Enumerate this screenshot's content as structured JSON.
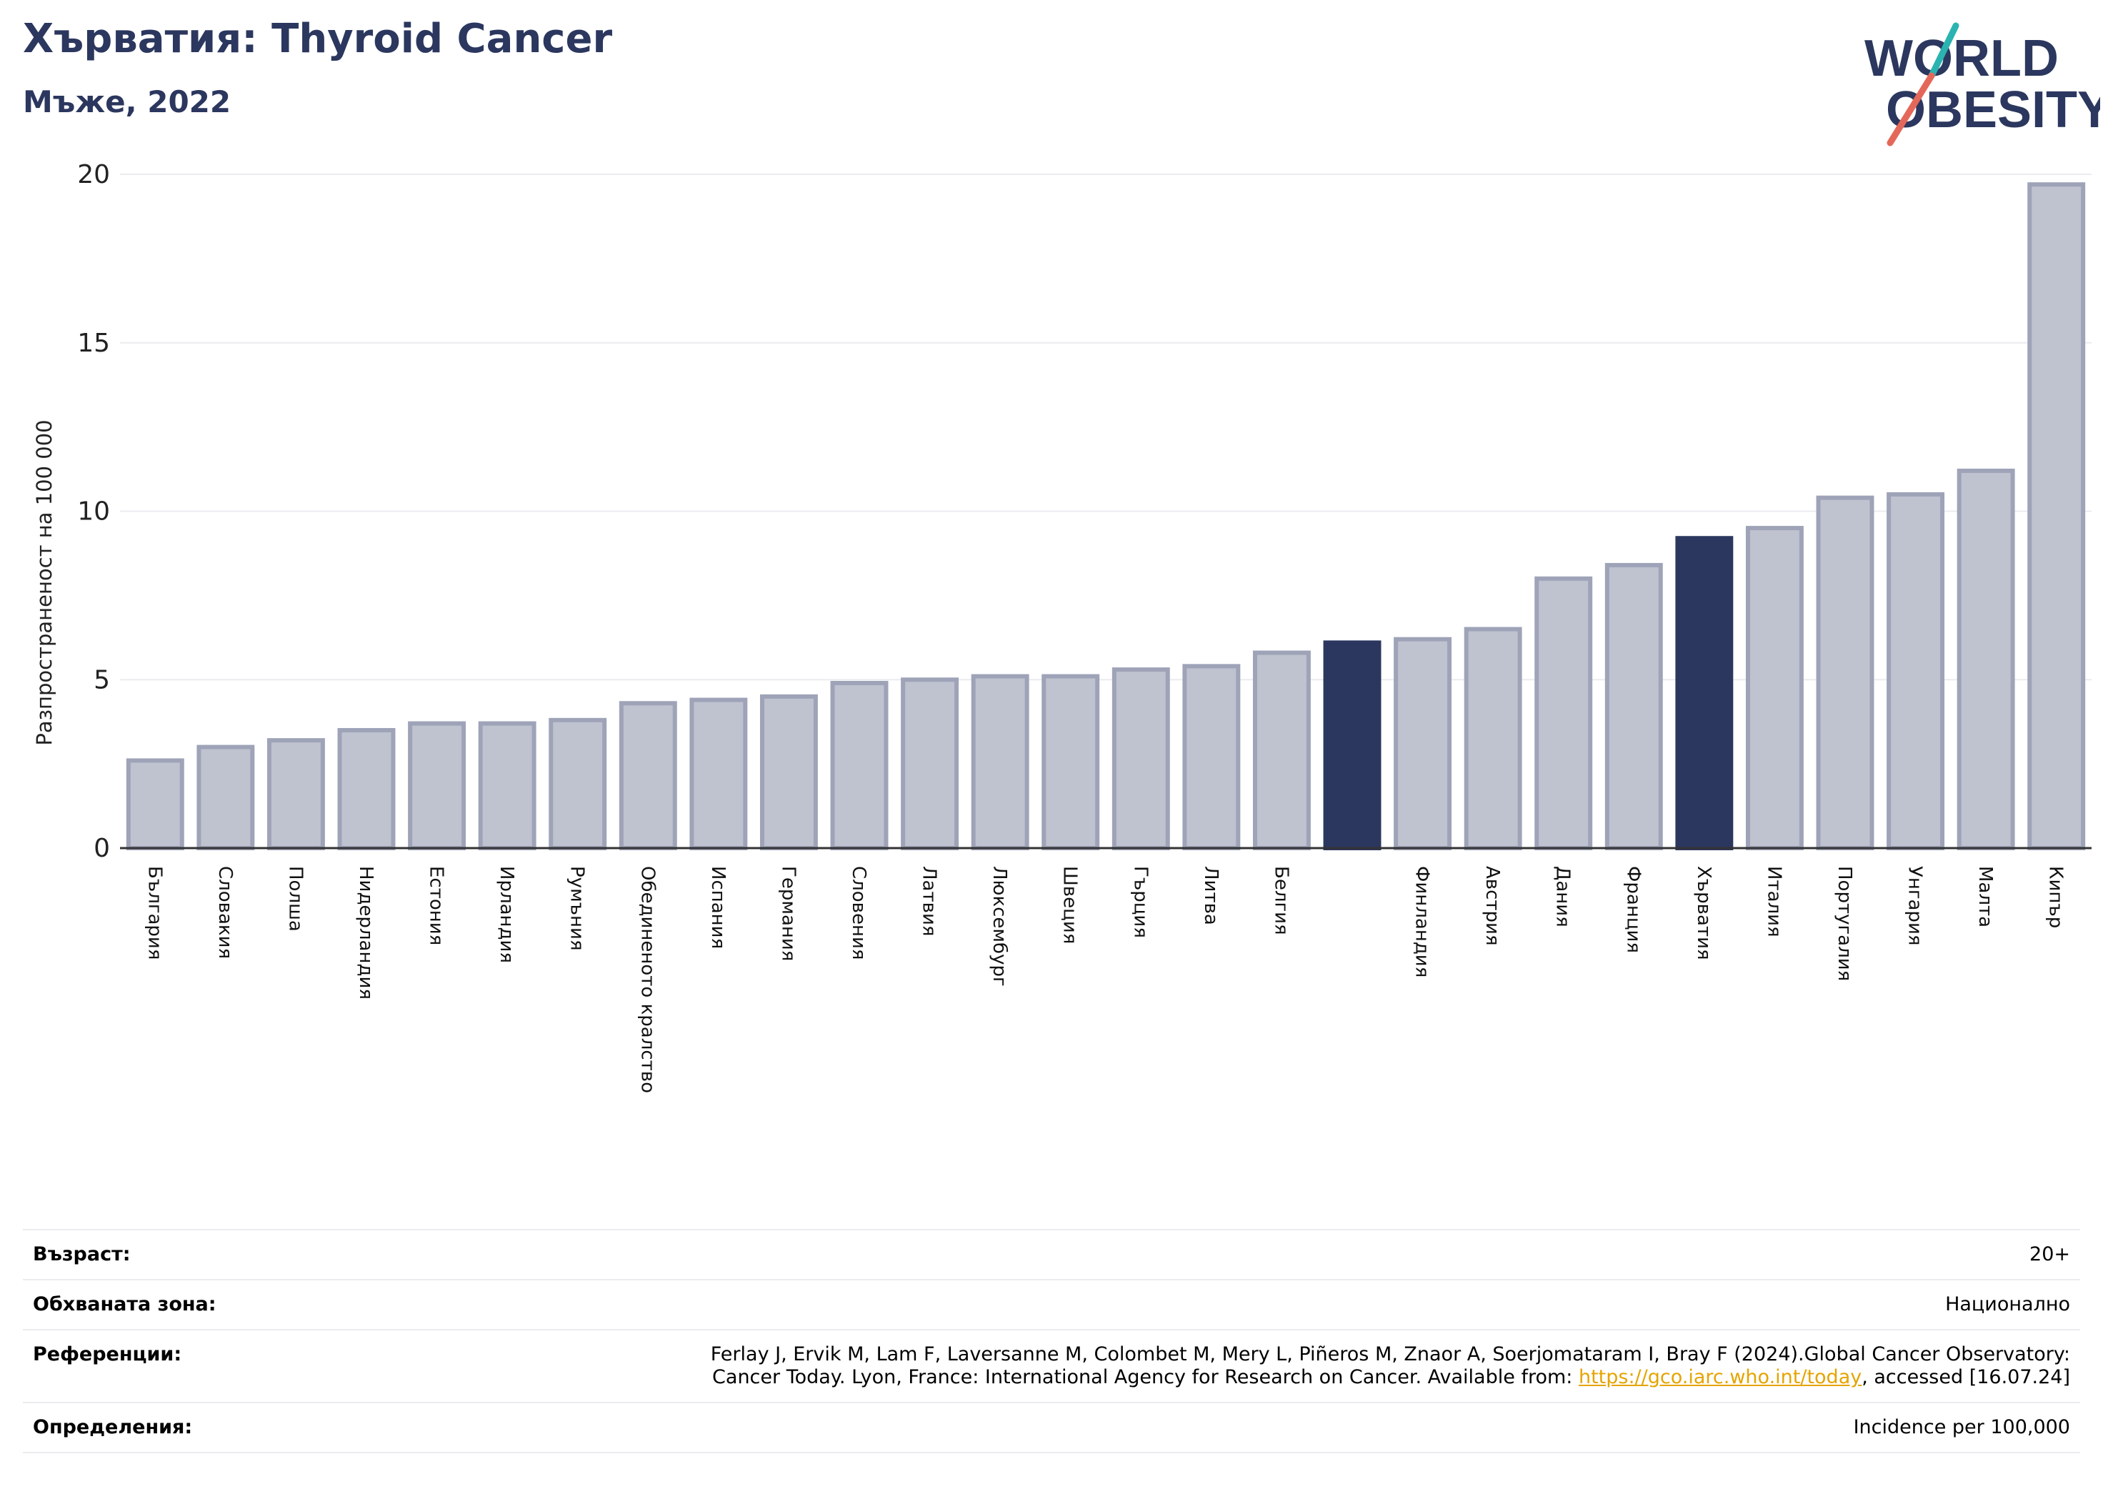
{
  "header": {
    "title": "Хърватия: Thyroid Cancer",
    "subtitle": "Мъже, 2022"
  },
  "logo": {
    "line1": "WORLD",
    "line2": "OBESITY",
    "accent_teal": "#2ab3b1",
    "accent_coral": "#e4685a",
    "text_color": "#2b375e"
  },
  "colors": {
    "bar_default": "#bfc2cf",
    "bar_default_edge": "#9ea3b8",
    "bar_highlight": "#2b375e",
    "grid": "#ebebf0",
    "axis": "#333333"
  },
  "chart_data": {
    "type": "bar",
    "title": "Хърватия: Thyroid Cancer",
    "subtitle": "Мъже, 2022",
    "xlabel": "",
    "ylabel": "Разпространеност  на 100 000",
    "ylim": [
      0,
      20
    ],
    "yticks": [
      0,
      5,
      10,
      15,
      20
    ],
    "grid": true,
    "categories": [
      "България",
      "Словакия",
      "Полша",
      "Нидерландия",
      "Естония",
      "Ирландия",
      "Румъния",
      "Обединеното кралство",
      "Испания",
      "Германия",
      "Словения",
      "Латвия",
      "Люксембург",
      "Швеция",
      "Гърция",
      "Литва",
      "Белгия",
      "",
      "Финландия",
      "Австрия",
      "Дания",
      "Франция",
      "Хърватия",
      "Италия",
      "Португалия",
      "Унгария",
      "Малта",
      "Кипър"
    ],
    "values": [
      2.6,
      3.0,
      3.2,
      3.5,
      3.7,
      3.7,
      3.8,
      4.3,
      4.4,
      4.5,
      4.9,
      5.0,
      5.1,
      5.1,
      5.3,
      5.4,
      5.8,
      6.1,
      6.2,
      6.5,
      8.0,
      8.4,
      9.2,
      9.5,
      10.4,
      10.5,
      11.2,
      19.7
    ],
    "highlighted": [
      17,
      22
    ]
  },
  "info": {
    "rows": [
      {
        "label": "Възраст:",
        "value": "20+"
      },
      {
        "label": "Обхваната зона:",
        "value": "Национално"
      },
      {
        "label": "Референции:",
        "value_line1": "Ferlay J, Ervik M, Lam F, Laversanne M, Colombet M, Mery L, Piñeros M, Znaor A, Soerjomataram I, Bray F (2024).Global Cancer Observatory:",
        "value_line2_pre": "Cancer Today. Lyon, France: International Agency for Research on Cancer. Available from: ",
        "link_text": "https://gco.iarc.who.int/today",
        "value_line2_post": ", accessed [16.07.24]"
      },
      {
        "label": "Определения:",
        "value": "Incidence per 100,000"
      }
    ]
  }
}
